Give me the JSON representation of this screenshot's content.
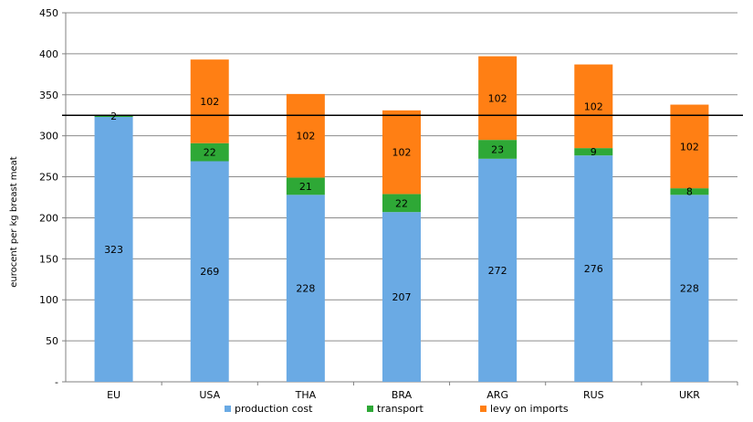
{
  "chart_data": {
    "type": "bar",
    "stacked": true,
    "categories": [
      "EU",
      "USA",
      "THA",
      "BRA",
      "ARG",
      "RUS",
      "UKR"
    ],
    "series": [
      {
        "name": "production cost",
        "values": [
          323,
          269,
          228,
          207,
          272,
          276,
          228
        ],
        "color": "#6aaae4"
      },
      {
        "name": "transport",
        "values": [
          2,
          22,
          21,
          22,
          23,
          9,
          8
        ],
        "color": "#2ea836"
      },
      {
        "name": "levy on imports",
        "values": [
          0,
          102,
          102,
          102,
          102,
          102,
          102
        ],
        "color": "#ff7f14"
      }
    ],
    "ylabel": "eurocent per kg breast meat",
    "ylim": [
      0,
      450
    ],
    "yticks": [
      0,
      50,
      100,
      150,
      200,
      250,
      300,
      350,
      400,
      450
    ],
    "ytick_labels": [
      "-",
      "50",
      "100",
      "150",
      "200",
      "250",
      "300",
      "350",
      "400",
      "450"
    ],
    "reference_line": 325,
    "grid": true,
    "legend_position": "bottom"
  }
}
